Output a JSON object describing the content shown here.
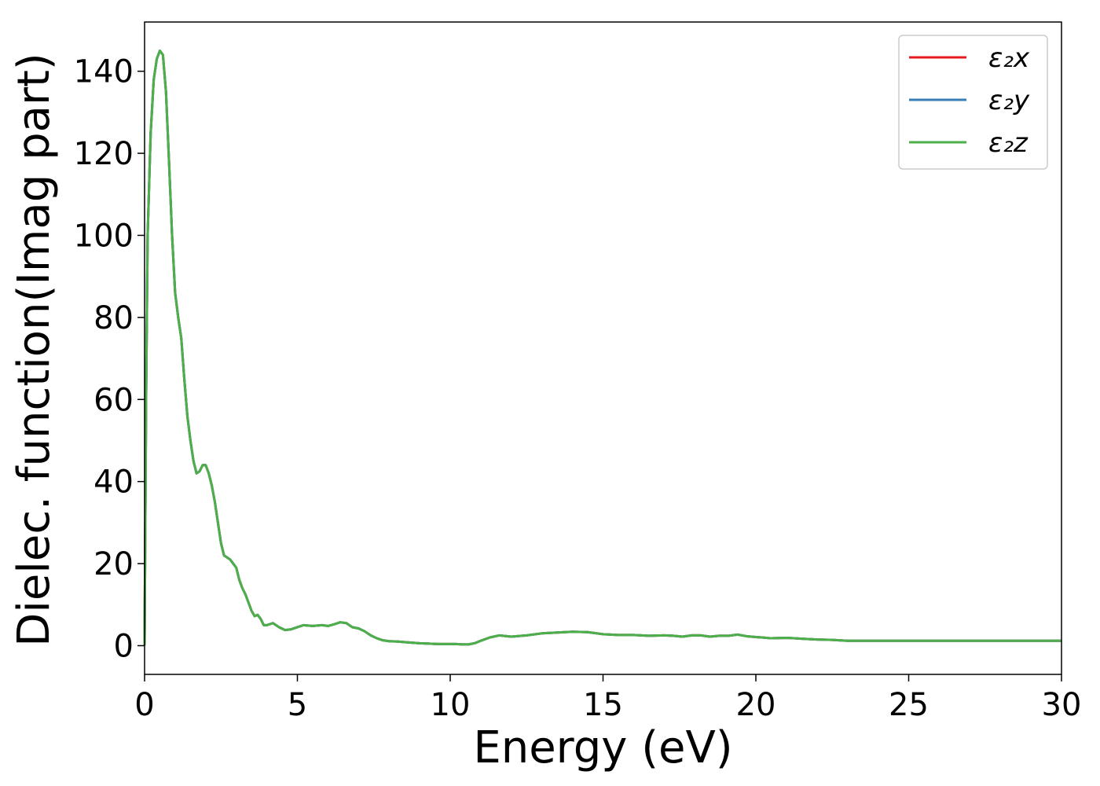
{
  "chart_data": {
    "type": "line",
    "xlabel": "Energy (eV)",
    "ylabel": "Dielec. function(Imag part)",
    "xlim": [
      0,
      30
    ],
    "ylim": [
      -7,
      152
    ],
    "xticks": [
      0,
      5,
      10,
      15,
      20,
      25,
      30
    ],
    "yticks": [
      0,
      20,
      40,
      60,
      80,
      100,
      120,
      140
    ],
    "grid": false,
    "legend_position": "top-right",
    "x": [
      0,
      0.05,
      0.1,
      0.2,
      0.3,
      0.4,
      0.5,
      0.6,
      0.7,
      0.8,
      0.9,
      1.0,
      1.1,
      1.2,
      1.3,
      1.4,
      1.5,
      1.6,
      1.7,
      1.8,
      1.9,
      2.0,
      2.1,
      2.2,
      2.3,
      2.4,
      2.5,
      2.6,
      2.7,
      2.8,
      2.9,
      3.0,
      3.1,
      3.2,
      3.3,
      3.4,
      3.5,
      3.6,
      3.7,
      3.8,
      3.9,
      4.0,
      4.2,
      4.4,
      4.6,
      4.8,
      5.0,
      5.2,
      5.5,
      5.8,
      6.0,
      6.2,
      6.4,
      6.6,
      6.8,
      7.0,
      7.2,
      7.4,
      7.6,
      7.8,
      8.0,
      8.3,
      8.6,
      9.0,
      9.3,
      9.6,
      9.9,
      10.2,
      10.4,
      10.6,
      10.8,
      11.0,
      11.3,
      11.6,
      12.0,
      12.5,
      13.0,
      13.5,
      14.0,
      14.5,
      15.0,
      15.5,
      16.0,
      16.5,
      17.0,
      17.3,
      17.6,
      17.9,
      18.2,
      18.5,
      18.8,
      19.1,
      19.4,
      19.7,
      20.0,
      20.2,
      20.5,
      21.0,
      21.5,
      22.0,
      22.5,
      23.0,
      23.5,
      24.0,
      24.5,
      25.0,
      25.3,
      25.6,
      25.9,
      26.2,
      26.5,
      27.0,
      27.5,
      28.0,
      28.5,
      29.0,
      29.5,
      30.0
    ],
    "series": [
      {
        "name": "ε₂x",
        "color": "#e41a1c"
      },
      {
        "name": "ε₂y",
        "color": "#377eb8"
      },
      {
        "name": "ε₂z",
        "color": "#4daf4a"
      }
    ],
    "y": [
      0,
      60,
      100,
      125,
      138,
      143,
      145,
      144,
      135,
      118,
      100,
      86,
      80,
      75,
      65,
      56,
      50,
      45,
      42,
      42.5,
      44,
      44,
      42,
      39,
      35,
      30,
      25,
      22,
      21.5,
      21,
      20,
      19,
      16,
      14,
      12.5,
      10.5,
      8.5,
      7.2,
      7.5,
      6.5,
      5.0,
      5.0,
      5.5,
      4.5,
      3.8,
      4.0,
      4.5,
      5.0,
      4.8,
      5.0,
      4.8,
      5.2,
      5.7,
      5.5,
      4.5,
      4.2,
      3.5,
      2.5,
      1.8,
      1.3,
      1.1,
      1.0,
      0.8,
      0.6,
      0.5,
      0.4,
      0.4,
      0.4,
      0.3,
      0.3,
      0.6,
      1.2,
      2.0,
      2.5,
      2.2,
      2.5,
      3.0,
      3.2,
      3.4,
      3.3,
      2.8,
      2.6,
      2.6,
      2.4,
      2.5,
      2.4,
      2.2,
      2.5,
      2.5,
      2.2,
      2.4,
      2.4,
      2.7,
      2.3,
      2.1,
      2.0,
      1.8,
      1.9,
      1.7,
      1.5,
      1.4,
      1.2,
      1.2,
      1.2,
      1.2,
      1.2,
      1.2,
      1.2,
      1.2,
      1.2,
      1.2,
      1.2,
      1.2,
      1.2,
      1.2,
      1.2,
      1.2,
      1.2
    ]
  }
}
